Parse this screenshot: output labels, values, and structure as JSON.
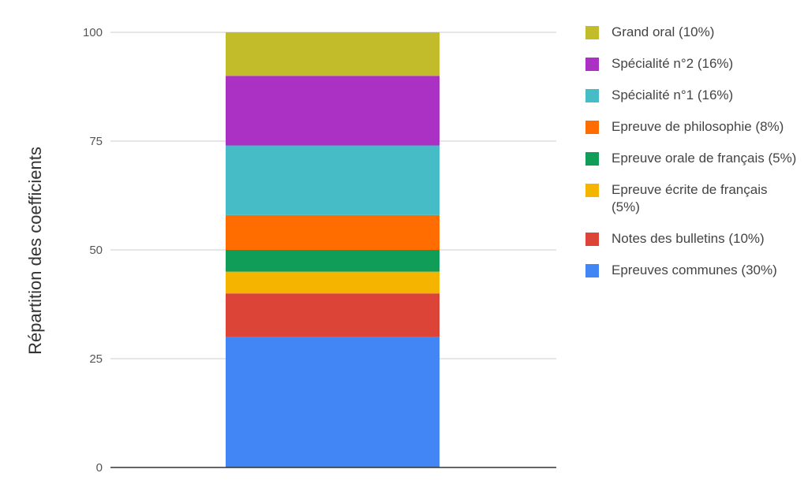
{
  "chart_data": {
    "type": "bar",
    "stacked": true,
    "categories": [
      ""
    ],
    "ylabel": "Répartition des coefficients",
    "xlabel": "",
    "ylim": [
      0,
      100
    ],
    "yticks": [
      "0",
      "25",
      "50",
      "75",
      "100"
    ],
    "yticks_values": [
      0,
      25,
      50,
      75,
      100
    ],
    "grid": true,
    "legend_position": "right",
    "series": [
      {
        "name": "Epreuves communes (30%)",
        "values": [
          30
        ],
        "color": "#4285f4"
      },
      {
        "name": "Notes des bulletins (10%)",
        "values": [
          10
        ],
        "color": "#db4437"
      },
      {
        "name": "Epreuve écrite de français (5%)",
        "values": [
          5
        ],
        "color": "#f4b400"
      },
      {
        "name": "Epreuve orale de français (5%)",
        "values": [
          5
        ],
        "color": "#0f9d58"
      },
      {
        "name": "Epreuve de philosophie (8%)",
        "values": [
          8
        ],
        "color": "#ff6d01"
      },
      {
        "name": "Spécialité n°1 (16%)",
        "values": [
          16
        ],
        "color": "#46bdc6"
      },
      {
        "name": "Spécialité n°2 (16%)",
        "values": [
          16
        ],
        "color": "#ab30c4"
      },
      {
        "name": "Grand oral (10%)",
        "values": [
          10
        ],
        "color": "#c2bc2a"
      }
    ]
  }
}
